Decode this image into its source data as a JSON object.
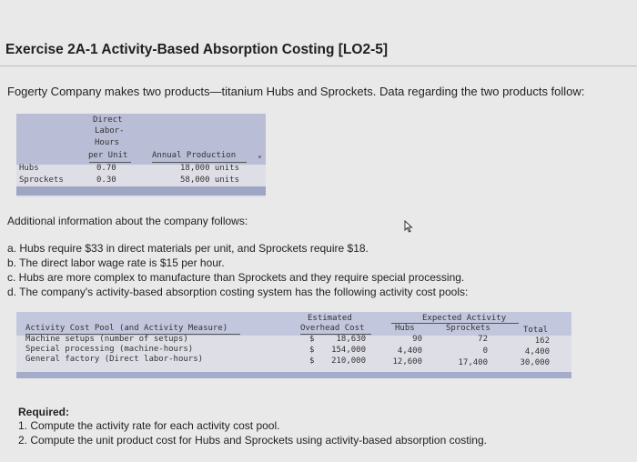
{
  "title": "Exercise 2A-1 Activity-Based Absorption Costing [LO2-5]",
  "intro": "Fogerty Company makes two products—titanium Hubs and Sprockets. Data regarding the two products follow:",
  "product_table": {
    "header_dlh": [
      "Direct",
      "Labor-",
      "Hours",
      "per Unit"
    ],
    "header_ap": "Annual Production",
    "rows": [
      {
        "name": "Hubs",
        "dlh": "0.70",
        "production": "18,000 units"
      },
      {
        "name": "Sprockets",
        "dlh": "0.30",
        "production": "58,000 units"
      }
    ]
  },
  "additional_heading": "Additional information about the company follows:",
  "additional_items": [
    "a. Hubs require $33 in direct materials per unit, and Sprockets require $18.",
    "b. The direct labor wage rate is $15 per hour.",
    "c. Hubs are more complex to manufacture than Sprockets and they require special processing.",
    "d. The company's activity-based absorption costing system has the following activity cost pools:"
  ],
  "activity_table": {
    "col_pool": "Activity Cost Pool (and Activity Measure)",
    "col_est_1": "Estimated",
    "col_est_2": "Overhead Cost",
    "group_header": "Expected Activity",
    "col_hubs": "Hubs",
    "col_sprockets": "Sprockets",
    "col_total": "Total",
    "rows": [
      {
        "pool": "Machine setups (number of setups)",
        "cur": "$",
        "cost": "18,630",
        "hubs": "90",
        "sprockets": "72",
        "total": "162"
      },
      {
        "pool": "Special processing (machine-hours)",
        "cur": "$",
        "cost": "154,000",
        "hubs": "4,400",
        "sprockets": "0",
        "total": "4,400"
      },
      {
        "pool": "General factory (Direct labor-hours)",
        "cur": "$",
        "cost": "210,000",
        "hubs": "12,600",
        "sprockets": "17,400",
        "total": "30,000"
      }
    ]
  },
  "required_heading": "Required:",
  "required_items": [
    "1. Compute the activity rate for each activity cost pool.",
    "2. Compute the unit product cost for Hubs and Sprockets using activity-based absorption costing."
  ],
  "colors": {
    "header_band": "#b9bdd6",
    "table_body": "#dedee6",
    "background": "#e9e9e9"
  },
  "icons": {
    "cursor": "mouse-pointer-icon"
  }
}
